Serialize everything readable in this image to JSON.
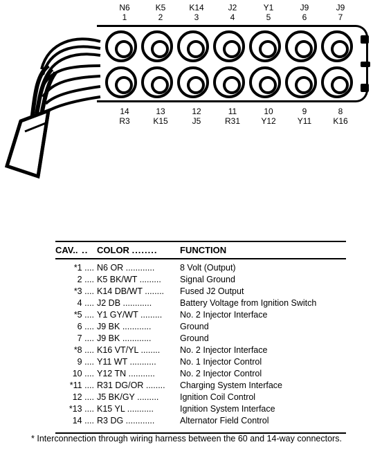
{
  "top_pins": [
    {
      "code": "N6",
      "num": "1"
    },
    {
      "code": "K5",
      "num": "2"
    },
    {
      "code": "K14",
      "num": "3"
    },
    {
      "code": "J2",
      "num": "4"
    },
    {
      "code": "Y1",
      "num": "5"
    },
    {
      "code": "J9",
      "num": "6"
    },
    {
      "code": "J9",
      "num": "7"
    }
  ],
  "bottom_pins": [
    {
      "num": "14",
      "code": "R3"
    },
    {
      "num": "13",
      "code": "K15"
    },
    {
      "num": "12",
      "code": "J5"
    },
    {
      "num": "11",
      "code": "R31"
    },
    {
      "num": "10",
      "code": "Y12"
    },
    {
      "num": "9",
      "code": "Y11"
    },
    {
      "num": "8",
      "code": "K16"
    }
  ],
  "header": {
    "cav": "CAV.",
    "color": "COLOR",
    "func": "FUNCTION"
  },
  "rows": [
    {
      "star": true,
      "cav": "1",
      "color": "N6 OR",
      "func": "8 Volt (Output)"
    },
    {
      "star": false,
      "cav": "2",
      "color": "K5 BK/WT",
      "func": "Signal Ground"
    },
    {
      "star": true,
      "cav": "3",
      "color": "K14 DB/WT",
      "func": "Fused J2 Output"
    },
    {
      "star": false,
      "cav": "4",
      "color": "J2 DB",
      "func": "Battery Voltage from Ignition Switch"
    },
    {
      "star": true,
      "cav": "5",
      "color": "Y1 GY/WT",
      "func": "No. 2 Injector Interface"
    },
    {
      "star": false,
      "cav": "6",
      "color": "J9 BK",
      "func": "Ground"
    },
    {
      "star": false,
      "cav": "7",
      "color": "J9 BK",
      "func": "Ground"
    },
    {
      "star": true,
      "cav": "8",
      "color": "K16 VT/YL",
      "func": "No. 2 Injector Interface"
    },
    {
      "star": false,
      "cav": "9",
      "color": "Y11 WT",
      "func": "No. 1 Injector Control"
    },
    {
      "star": false,
      "cav": "10",
      "color": "Y12 TN",
      "func": "No. 2 Injector Control"
    },
    {
      "star": true,
      "cav": "11",
      "color": "R31 DG/OR",
      "func": "Charging System Interface"
    },
    {
      "star": false,
      "cav": "12",
      "color": "J5 BK/GY",
      "func": "Ignition Coil Control"
    },
    {
      "star": true,
      "cav": "13",
      "color": "K15 YL",
      "func": "Ignition System Interface"
    },
    {
      "star": false,
      "cav": "14",
      "color": "R3 DG",
      "func": "Alternator Field Control"
    }
  ],
  "dots3": "....",
  "dots_cav": ". ..",
  "dots_color": "........",
  "footnote": "* Interconnection through wiring harness between the 60 and 14-way connectors.",
  "colors": {
    "line": "#000000",
    "bg": "#ffffff"
  }
}
